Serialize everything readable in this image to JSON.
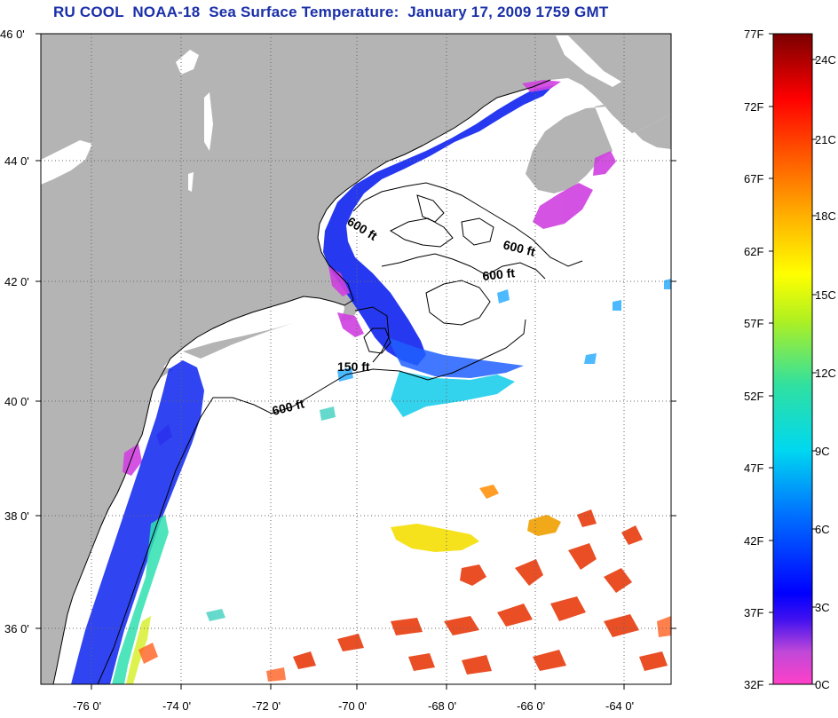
{
  "title": "RU COOL  NOAA-18  Sea Surface Temperature:  January 17, 2009 1759 GMT",
  "map": {
    "lon_range": [
      -77,
      -63
    ],
    "lat_range": [
      35,
      46
    ],
    "lat_ticks": [
      {
        "value": 46,
        "label": "46 0'"
      },
      {
        "value": 44,
        "label": "44 0'"
      },
      {
        "value": 42,
        "label": "42 0'"
      },
      {
        "value": 40,
        "label": "40 0'"
      },
      {
        "value": 38,
        "label": "38 0'"
      },
      {
        "value": 36,
        "label": "36 0'"
      }
    ],
    "lon_ticks": [
      {
        "value": -76,
        "label": "-76 0'"
      },
      {
        "value": -74,
        "label": "-74 0'"
      },
      {
        "value": -72,
        "label": "-72 0'"
      },
      {
        "value": -70,
        "label": "-70 0'"
      },
      {
        "value": -68,
        "label": "-68 0'"
      },
      {
        "value": -66,
        "label": "-66 0'"
      },
      {
        "value": -64,
        "label": "-64 0'"
      }
    ],
    "contour_labels": [
      "600 ft",
      "600 ft",
      "600 ft",
      "150 ft",
      "600 ft"
    ],
    "colors": {
      "land": "#b4b4b4",
      "ocean": "#ffffff",
      "contour": "#000000"
    }
  },
  "colorbar": {
    "fahrenheit_labels": [
      "77F",
      "72F",
      "67F",
      "62F",
      "57F",
      "52F",
      "47F",
      "42F",
      "37F",
      "32F"
    ],
    "celsius_labels": [
      "24C",
      "21C",
      "18C",
      "15C",
      "12C",
      "9C",
      "6C",
      "3C",
      "0C"
    ],
    "colors": [
      "#ff40c8",
      "#a050e0",
      "#0000ff",
      "#0080ff",
      "#00e0e0",
      "#40e080",
      "#c0ff00",
      "#ffff00",
      "#ffa000",
      "#ff4000",
      "#e00000",
      "#780000"
    ]
  }
}
